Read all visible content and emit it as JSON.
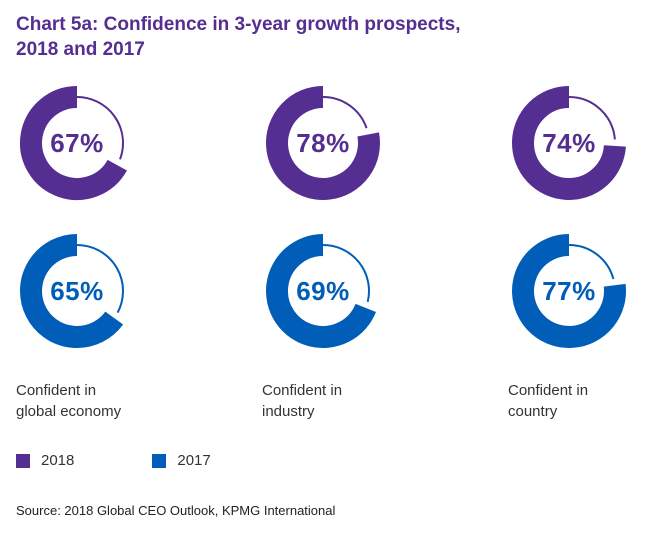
{
  "title": {
    "line1": "Chart 5a: Confidence in 3-year growth prospects,",
    "line2": "2018 and 2017"
  },
  "colors": {
    "purple_2018": "#542E91",
    "blue_2017": "#005EB8"
  },
  "chart_data": {
    "type": "pie",
    "subtype": "donut-grid",
    "title": "Chart 5a: Confidence in 3-year growth prospects, 2018 and 2017",
    "categories": [
      "Confident in global economy",
      "Confident in industry",
      "Confident in country"
    ],
    "series": [
      {
        "name": "2018",
        "color": "#542E91",
        "values": [
          67,
          78,
          74
        ]
      },
      {
        "name": "2017",
        "color": "#005EB8",
        "values": [
          65,
          69,
          77
        ]
      }
    ],
    "value_format": "percent",
    "legend_position": "bottom-left"
  },
  "category_labels": [
    {
      "line1": "Confident in",
      "line2": "global economy"
    },
    {
      "line1": "Confident in",
      "line2": "industry"
    },
    {
      "line1": "Confident in",
      "line2": "country"
    }
  ],
  "source": "Source: 2018 Global CEO Outlook, KPMG International"
}
